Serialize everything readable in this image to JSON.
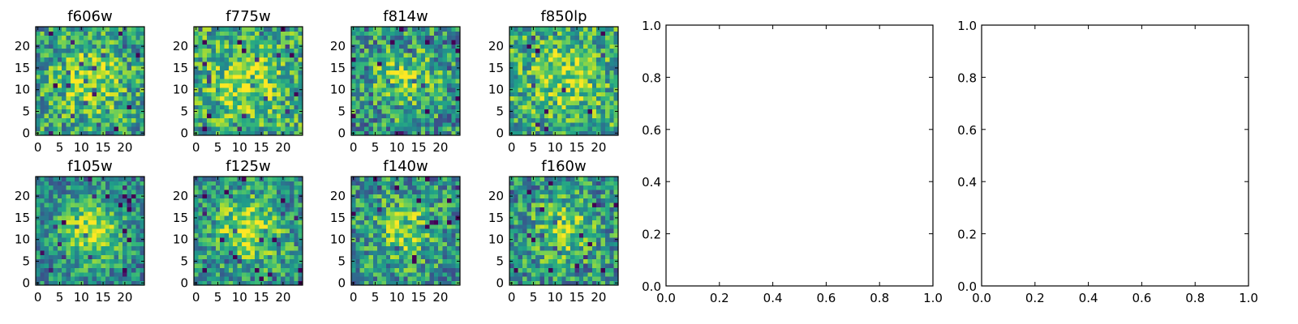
{
  "chart_data": [
    {
      "type": "heatmap",
      "title": "f606w",
      "grid_size": [
        25,
        25
      ],
      "xlim": [
        -0.5,
        24.5
      ],
      "ylim": [
        -0.5,
        24.5
      ],
      "xticks": [
        "0",
        "5",
        "10",
        "15",
        "20"
      ],
      "yticks": [
        "0",
        "5",
        "10",
        "15",
        "20"
      ],
      "colormap": "viridis",
      "center_brightness": 0.35,
      "background_level": 0.55,
      "noise": 0.3
    },
    {
      "type": "heatmap",
      "title": "f775w",
      "grid_size": [
        25,
        25
      ],
      "xlim": [
        -0.5,
        24.5
      ],
      "ylim": [
        -0.5,
        24.5
      ],
      "xticks": [
        "0",
        "5",
        "10",
        "15",
        "20"
      ],
      "yticks": [
        "0",
        "5",
        "10",
        "15",
        "20"
      ],
      "colormap": "viridis",
      "center_brightness": 0.3,
      "background_level": 0.6,
      "noise": 0.3
    },
    {
      "type": "heatmap",
      "title": "f814w",
      "grid_size": [
        25,
        25
      ],
      "xlim": [
        -0.5,
        24.5
      ],
      "ylim": [
        -0.5,
        24.5
      ],
      "xticks": [
        "0",
        "5",
        "10",
        "15",
        "20"
      ],
      "yticks": [
        "0",
        "5",
        "10",
        "15",
        "20"
      ],
      "colormap": "viridis",
      "center_brightness": 0.3,
      "background_level": 0.5,
      "noise": 0.32
    },
    {
      "type": "heatmap",
      "title": "f850lp",
      "grid_size": [
        25,
        25
      ],
      "xlim": [
        -0.5,
        24.5
      ],
      "ylim": [
        -0.5,
        24.5
      ],
      "xticks": [
        "0",
        "5",
        "10",
        "15",
        "20"
      ],
      "yticks": [
        "0",
        "5",
        "10",
        "15",
        "20"
      ],
      "colormap": "viridis",
      "center_brightness": 0.25,
      "background_level": 0.6,
      "noise": 0.3
    },
    {
      "type": "heatmap",
      "title": "f105w",
      "grid_size": [
        25,
        25
      ],
      "xlim": [
        -0.5,
        24.5
      ],
      "ylim": [
        -0.5,
        24.5
      ],
      "xticks": [
        "0",
        "5",
        "10",
        "15",
        "20"
      ],
      "yticks": [
        "0",
        "5",
        "10",
        "15",
        "20"
      ],
      "colormap": "viridis",
      "center_brightness": 0.45,
      "background_level": 0.45,
      "noise": 0.25
    },
    {
      "type": "heatmap",
      "title": "f125w",
      "grid_size": [
        25,
        25
      ],
      "xlim": [
        -0.5,
        24.5
      ],
      "ylim": [
        -0.5,
        24.5
      ],
      "xticks": [
        "0",
        "5",
        "10",
        "15",
        "20"
      ],
      "yticks": [
        "0",
        "5",
        "10",
        "15",
        "20"
      ],
      "colormap": "viridis",
      "center_brightness": 0.4,
      "background_level": 0.5,
      "noise": 0.28
    },
    {
      "type": "heatmap",
      "title": "f140w",
      "grid_size": [
        25,
        25
      ],
      "xlim": [
        -0.5,
        24.5
      ],
      "ylim": [
        -0.5,
        24.5
      ],
      "xticks": [
        "0",
        "5",
        "10",
        "15",
        "20"
      ],
      "yticks": [
        "0",
        "5",
        "10",
        "15",
        "20"
      ],
      "colormap": "viridis",
      "center_brightness": 0.3,
      "background_level": 0.5,
      "noise": 0.3
    },
    {
      "type": "heatmap",
      "title": "f160w",
      "grid_size": [
        25,
        25
      ],
      "xlim": [
        -0.5,
        24.5
      ],
      "ylim": [
        -0.5,
        24.5
      ],
      "xticks": [
        "0",
        "5",
        "10",
        "15",
        "20"
      ],
      "yticks": [
        "0",
        "5",
        "10",
        "15",
        "20"
      ],
      "colormap": "viridis",
      "center_brightness": 0.3,
      "background_level": 0.5,
      "noise": 0.3
    },
    {
      "type": "line",
      "title": "",
      "series": [],
      "xlim": [
        0.0,
        1.0
      ],
      "ylim": [
        0.0,
        1.0
      ],
      "xticks": [
        "0.0",
        "0.2",
        "0.4",
        "0.6",
        "0.8",
        "1.0"
      ],
      "yticks": [
        "0.0",
        "0.2",
        "0.4",
        "0.6",
        "0.8",
        "1.0"
      ],
      "empty": true
    },
    {
      "type": "line",
      "title": "",
      "series": [],
      "xlim": [
        0.0,
        1.0
      ],
      "ylim": [
        0.0,
        1.0
      ],
      "xticks": [
        "0.0",
        "0.2",
        "0.4",
        "0.6",
        "0.8",
        "1.0"
      ],
      "yticks": [
        "0.0",
        "0.2",
        "0.4",
        "0.6",
        "0.8",
        "1.0"
      ],
      "empty": true
    }
  ]
}
